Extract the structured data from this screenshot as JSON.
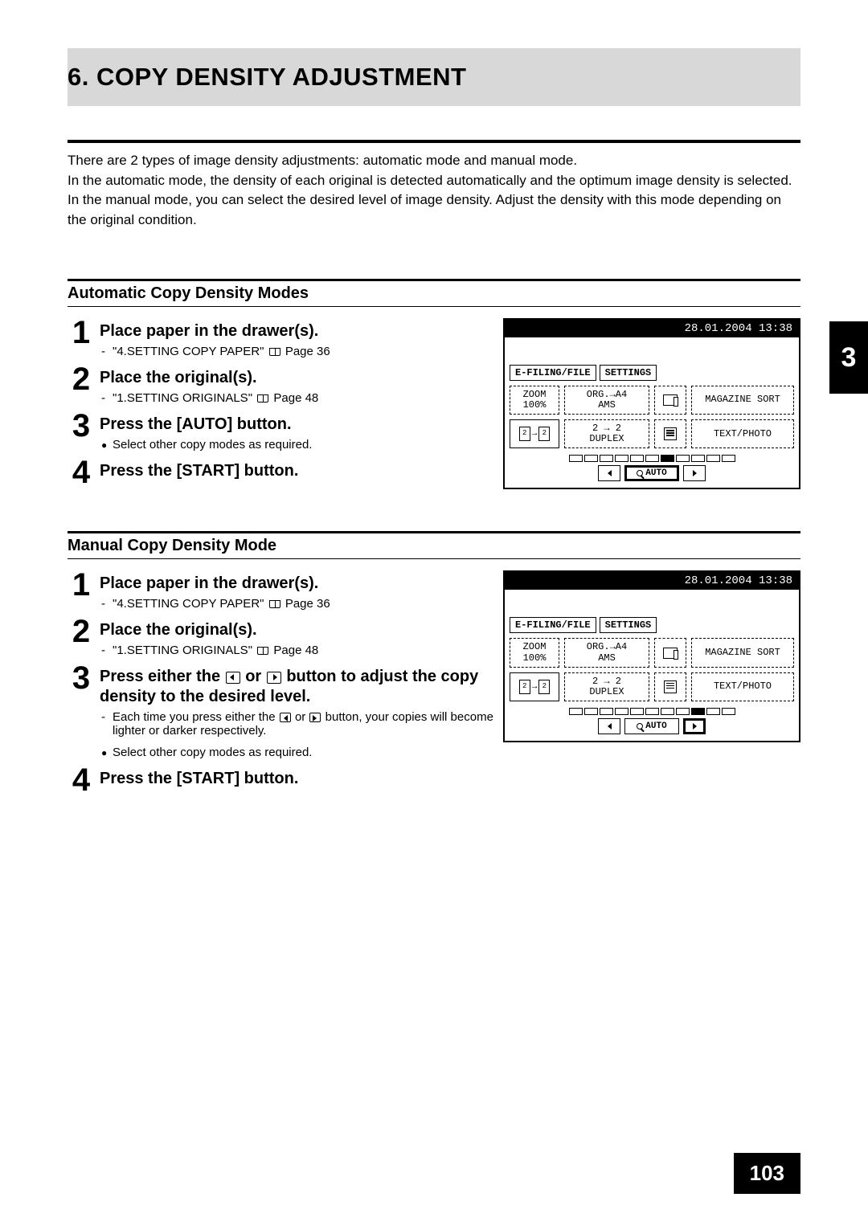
{
  "title": "6. COPY DENSITY ADJUSTMENT",
  "intro": "There are 2 types of image density adjustments: automatic mode and manual mode.\nIn the automatic mode, the density of each original is detected automatically and the optimum image density is selected. In the manual mode, you can select the desired level of image density. Adjust the density with this mode depending on the original condition.",
  "sideTab": "3",
  "pageNum": "103",
  "auto": {
    "heading": "Automatic Copy Density Modes",
    "steps": [
      {
        "num": "1",
        "title": "Place paper in the drawer(s).",
        "ref": "\"4.SETTING COPY PAPER\"",
        "refPage": "Page 36"
      },
      {
        "num": "2",
        "title": "Place the original(s).",
        "ref": "\"1.SETTING ORIGINALS\"",
        "refPage": "Page 48"
      },
      {
        "num": "3",
        "title": "Press the [AUTO] button.",
        "bullet": "Select other copy modes as required."
      },
      {
        "num": "4",
        "title": "Press the [START] button."
      }
    ]
  },
  "manual": {
    "heading": "Manual Copy Density Mode",
    "steps": [
      {
        "num": "1",
        "title": "Place paper in the drawer(s).",
        "ref": "\"4.SETTING COPY PAPER\"",
        "refPage": "Page 36"
      },
      {
        "num": "2",
        "title": "Place the original(s).",
        "ref": "\"1.SETTING ORIGINALS\"",
        "refPage": "Page 48"
      },
      {
        "num": "3",
        "title_a": "Press either the",
        "title_b": "or",
        "title_c": "button to adjust the copy density to the desired level.",
        "sub_a": "Each time you press either the",
        "sub_b": "or",
        "sub_c": "button, your copies will become lighter or darker respectively.",
        "bullet": "Select other copy modes as required."
      },
      {
        "num": "4",
        "title": "Press the [START] button."
      }
    ]
  },
  "screen": {
    "datetime": "28.01.2004 13:38",
    "tab1": "E-FILING/FILE",
    "tab2": "SETTINGS",
    "zoom_label": "ZOOM",
    "zoom_val": "100%",
    "org_label": "ORG.→A4",
    "ams_label": "AMS",
    "mag_label": "MAGAZINE SORT",
    "dup_label": "2 → 2",
    "dup_text": "DUPLEX",
    "tp_label": "TEXT/PHOTO",
    "auto_label": "AUTO",
    "density_auto_selected": 6,
    "density_manual_selected": 8
  }
}
